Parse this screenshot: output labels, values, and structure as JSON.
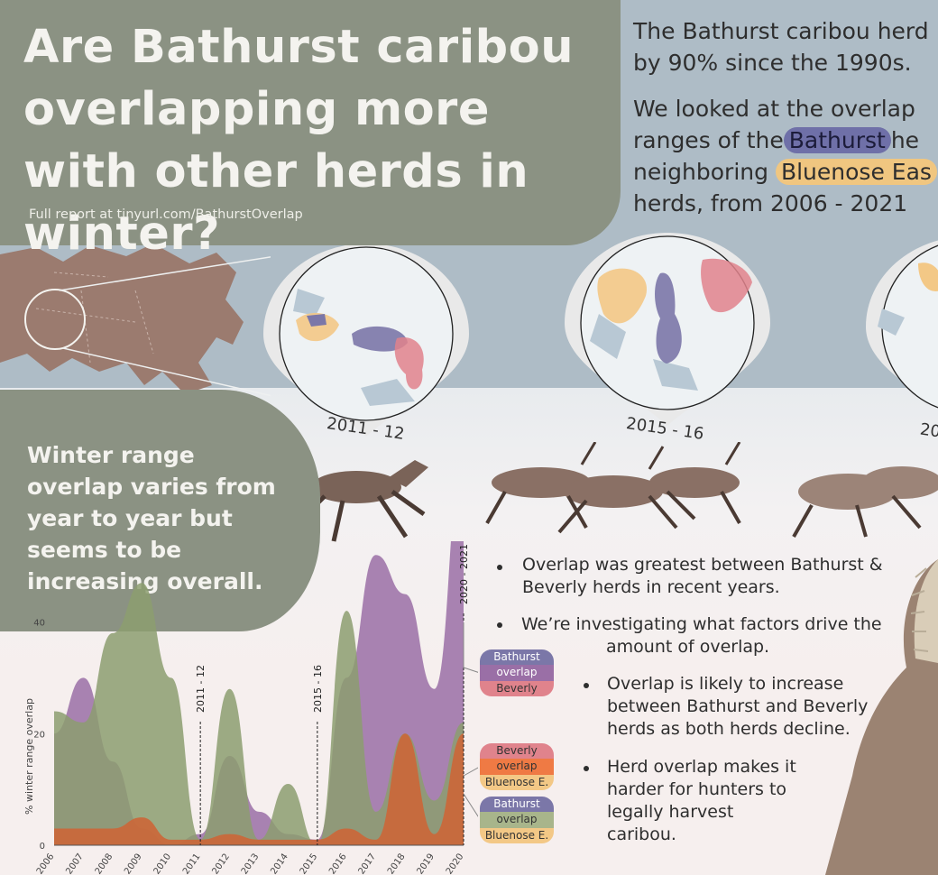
{
  "header": {
    "title": "Are Bathurst caribou overlapping more with other herds in winter?",
    "report_link": "Full report at tinyurl.com/BathurstOverlap"
  },
  "intro": {
    "line1": "The Bathurst caribou herd",
    "line2": "by 90% since the 1990s.",
    "p2_line1": "We looked at the overlap",
    "p2_pre": "ranges of the",
    "bathurst": "Bathurst",
    "p2_post": "he",
    "p2_line3_pre": "neighboring",
    "bluenose": "Bluenose Eas",
    "p2_line4": "herds, from 2006 - 2021"
  },
  "maps": {
    "label_2011": "2011 - 12",
    "label_2015": "2015 - 16",
    "label_third": "20"
  },
  "subtitle": "Winter range overlap varies from year to year but seems to be increasing overall.",
  "bullets": {
    "b1_l1": "Overlap was greatest between Bathurst &",
    "b1_l2": "Beverly herds in recent years.",
    "b2_l1": "We’re investigating what factors drive the",
    "b2_l2": "amount of overlap.",
    "b3_l1": "Overlap is likely to increase",
    "b3_l2": "between Bathurst and Beverly",
    "b3_l3": "herds as both herds decline.",
    "b4_l1": "Herd overlap makes it",
    "b4_l2": "harder for hunters to",
    "b4_l3": "legally harvest",
    "b4_l4": "caribou."
  },
  "legend": {
    "p1": [
      "Bathurst",
      "overlap",
      "Beverly"
    ],
    "p2": [
      "Beverly",
      "overlap",
      "Bluenose E."
    ],
    "p3": [
      "Bathurst",
      "overlap",
      "Bluenose E."
    ]
  },
  "colors": {
    "bathurst": "#7b77a8",
    "beverly": "#e0838c",
    "bluenose": "#f3c886",
    "bath_bev": "#9a6fa6",
    "bev_blue": "#cc6637",
    "bath_blue": "#8c9e70"
  },
  "chart_data": {
    "type": "area",
    "ylabel": "% winter range overlap",
    "yticks": [
      0,
      20,
      40
    ],
    "ylim": [
      0,
      48
    ],
    "x": [
      2006,
      2007,
      2008,
      2009,
      2010,
      2011,
      2012,
      2013,
      2014,
      2015,
      2016,
      2017,
      2018,
      2019,
      2020
    ],
    "series": [
      {
        "name": "Bathurst overlap Beverly",
        "color": "#9a6fa6",
        "values": [
          20,
          30,
          15,
          3,
          0,
          2,
          16,
          6,
          2,
          1,
          30,
          52,
          45,
          28,
          70
        ]
      },
      {
        "name": "Bathurst overlap Bluenose E.",
        "color": "#8c9e70",
        "values": [
          24,
          22,
          38,
          47,
          30,
          1,
          28,
          1,
          11,
          0,
          42,
          6,
          20,
          8,
          22
        ]
      },
      {
        "name": "Beverly overlap Bluenose E.",
        "color": "#cc6637",
        "values": [
          3,
          3,
          3,
          5,
          1,
          1,
          2,
          1,
          1,
          1,
          3,
          1,
          20,
          2,
          20
        ]
      }
    ],
    "markers": [
      {
        "year": 2011,
        "label": "2011 - 12"
      },
      {
        "year": 2015,
        "label": "2015 - 16"
      },
      {
        "year": 2020,
        "label": "2020 - 2021"
      }
    ]
  }
}
